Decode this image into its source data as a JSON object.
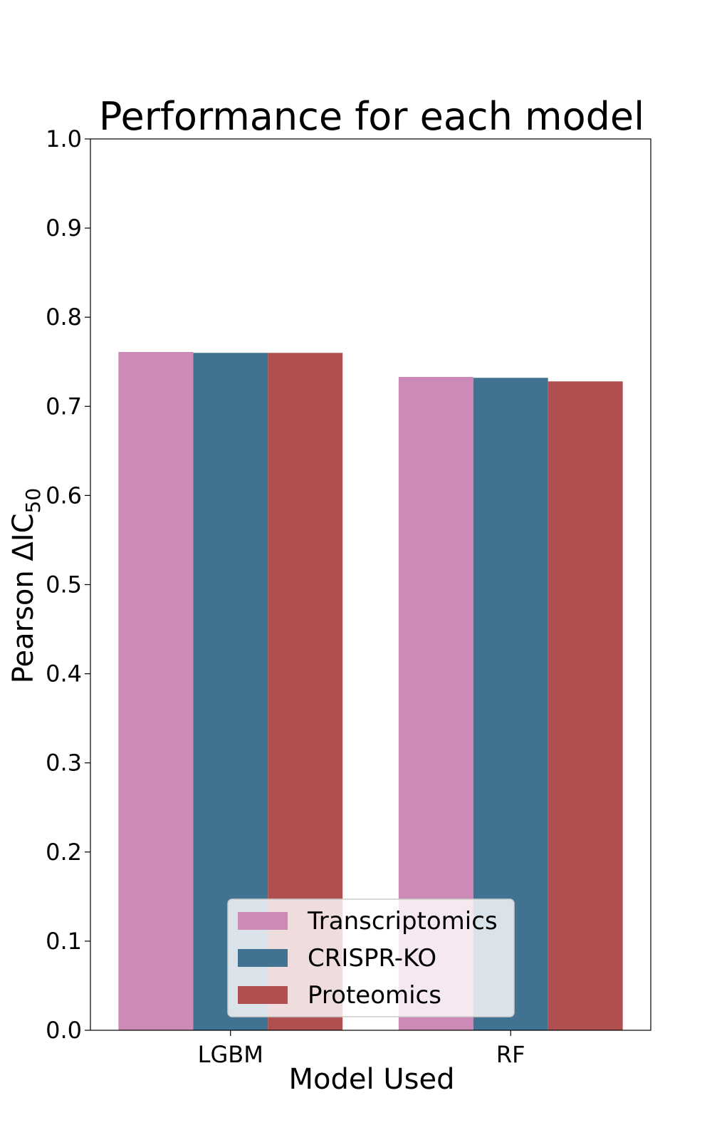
{
  "chart_data": {
    "type": "bar",
    "title": "Performance for each model",
    "xlabel": "Model Used",
    "ylabel": {
      "prefix": "Pearson ΔIC",
      "subscript": "50"
    },
    "categories": [
      "LGBM",
      "RF"
    ],
    "series": [
      {
        "name": "Transcriptomics",
        "values": [
          0.761,
          0.733
        ],
        "color": "#cc8bb6"
      },
      {
        "name": "CRISPR-KO",
        "values": [
          0.76,
          0.732
        ],
        "color": "#427291"
      },
      {
        "name": "Proteomics",
        "values": [
          0.76,
          0.728
        ],
        "color": "#b04f4f"
      }
    ],
    "ylim": [
      0,
      1.0
    ],
    "yticks": [
      0.0,
      0.1,
      0.2,
      0.3,
      0.4,
      0.5,
      0.6,
      0.7,
      0.8,
      0.9,
      1.0
    ],
    "ytick_labels": [
      "0.0",
      "0.1",
      "0.2",
      "0.3",
      "0.4",
      "0.5",
      "0.6",
      "0.7",
      "0.8",
      "0.9",
      "1.0"
    ],
    "grid": false,
    "legend_position": "bottom-center"
  }
}
